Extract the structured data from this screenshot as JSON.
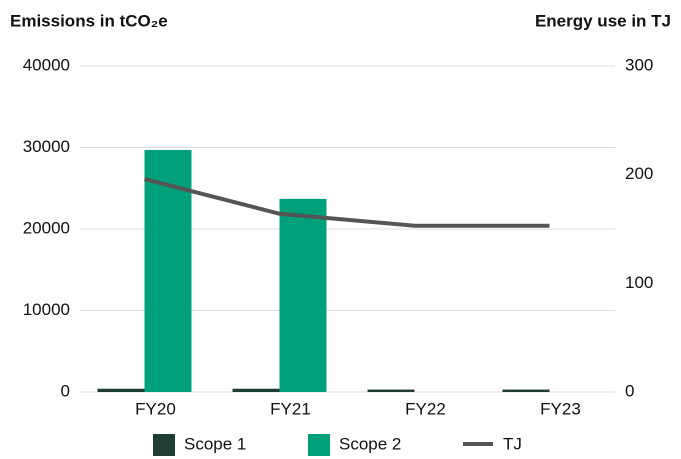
{
  "chart_data": {
    "type": "bar",
    "title": "Emissions in tCO₂e",
    "y2_title": "Energy use in TJ",
    "categories": [
      "FY20",
      "FY21",
      "FY22",
      "FY23"
    ],
    "series": [
      {
        "name": "Scope 1",
        "color": "#1f3d33",
        "values": [
          400,
          400,
          300,
          300
        ]
      },
      {
        "name": "Scope 2",
        "color": "#00a07a",
        "values": [
          29700,
          23700,
          0,
          0
        ]
      },
      {
        "name": "TJ",
        "color": "#555555",
        "type": "line",
        "axis": "y2",
        "values": [
          196,
          164,
          153,
          153
        ]
      }
    ],
    "ylim": [
      0,
      40000
    ],
    "yticks": [
      0,
      10000,
      20000,
      30000,
      40000
    ],
    "y2lim": [
      0,
      300
    ],
    "y2ticks": [
      0,
      100,
      200,
      300
    ],
    "grid": true,
    "legend": "bottom"
  }
}
